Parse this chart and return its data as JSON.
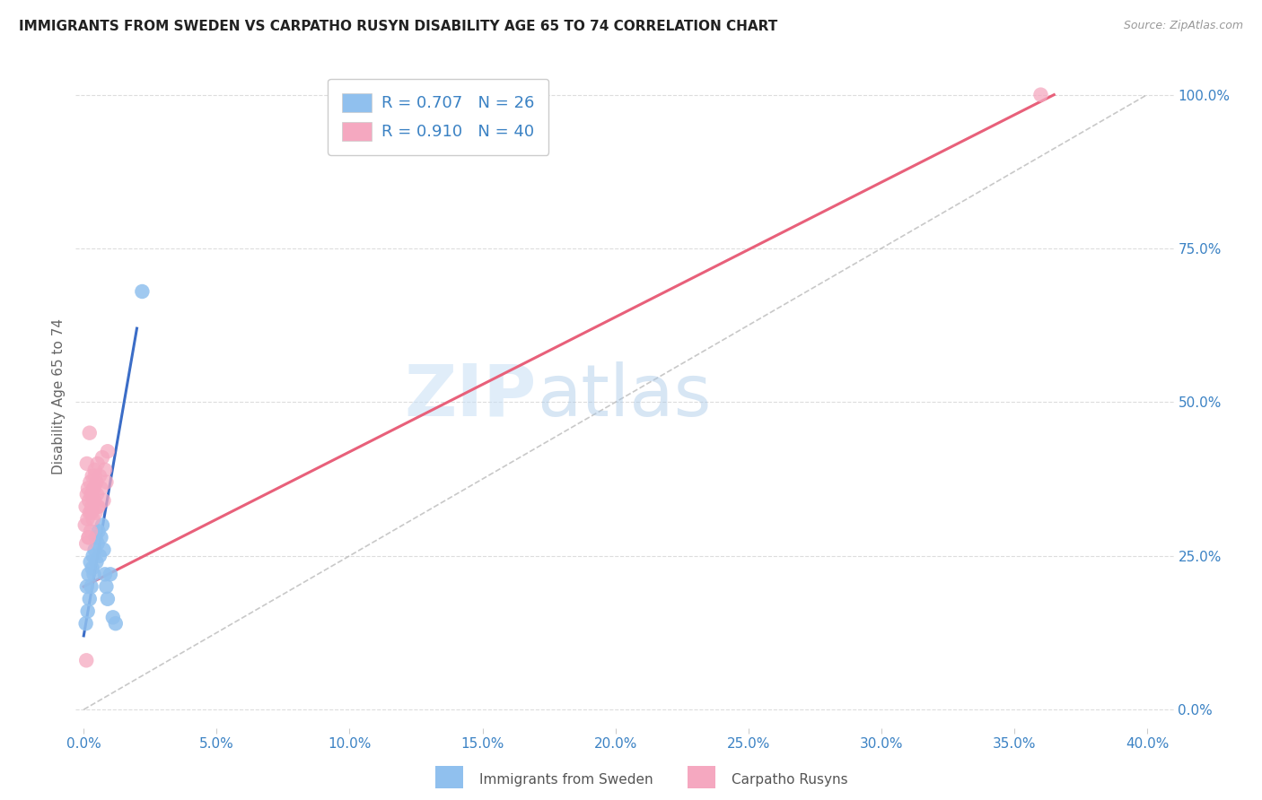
{
  "title": "IMMIGRANTS FROM SWEDEN VS CARPATHO RUSYN DISABILITY AGE 65 TO 74 CORRELATION CHART",
  "source": "Source: ZipAtlas.com",
  "ylabel": "Disability Age 65 to 74",
  "xlabel_ticks": [
    0.0,
    5.0,
    10.0,
    15.0,
    20.0,
    25.0,
    30.0,
    35.0,
    40.0
  ],
  "ylabel_ticks": [
    0.0,
    25.0,
    50.0,
    75.0,
    100.0
  ],
  "xlim": [
    -0.3,
    41.0
  ],
  "ylim": [
    -3.0,
    105.0
  ],
  "legend_r1": "R = 0.707",
  "legend_n1": "N = 26",
  "legend_r2": "R = 0.910",
  "legend_n2": "N = 40",
  "legend_label1": "Immigrants from Sweden",
  "legend_label2": "Carpatho Rusyns",
  "color_sweden": "#90C0EE",
  "color_rusyn": "#F5A8C0",
  "color_sweden_line": "#3B6DC7",
  "color_rusyn_line": "#E8607A",
  "color_ref_line": "#BBBBBB",
  "color_title": "#222222",
  "color_axis_ticks": "#3B82C4",
  "watermark_text": "ZIPatlas",
  "sweden_points_x": [
    0.08,
    0.12,
    0.15,
    0.18,
    0.22,
    0.25,
    0.28,
    0.32,
    0.35,
    0.38,
    0.42,
    0.45,
    0.48,
    0.52,
    0.55,
    0.6,
    0.65,
    0.7,
    0.75,
    0.8,
    0.85,
    0.9,
    1.0,
    1.1,
    1.2,
    2.2
  ],
  "sweden_points_y": [
    14.0,
    20.0,
    16.0,
    22.0,
    18.0,
    24.0,
    20.0,
    23.0,
    25.0,
    22.0,
    26.0,
    28.0,
    24.0,
    27.0,
    29.0,
    25.0,
    28.0,
    30.0,
    26.0,
    22.0,
    20.0,
    18.0,
    22.0,
    15.0,
    14.0,
    68.0
  ],
  "rusyn_points_x": [
    0.05,
    0.08,
    0.1,
    0.12,
    0.14,
    0.16,
    0.18,
    0.2,
    0.22,
    0.24,
    0.26,
    0.28,
    0.3,
    0.32,
    0.35,
    0.38,
    0.4,
    0.42,
    0.45,
    0.48,
    0.5,
    0.52,
    0.55,
    0.6,
    0.65,
    0.7,
    0.75,
    0.8,
    0.85,
    0.9,
    0.12,
    0.22,
    0.32,
    0.42,
    0.52,
    0.18,
    0.28,
    0.38,
    36.0,
    0.1
  ],
  "rusyn_points_y": [
    30.0,
    33.0,
    27.0,
    35.0,
    31.0,
    36.0,
    28.0,
    34.0,
    32.0,
    37.0,
    29.0,
    35.0,
    33.0,
    38.0,
    31.0,
    36.0,
    34.0,
    39.0,
    32.0,
    37.0,
    35.0,
    40.0,
    33.0,
    38.0,
    36.0,
    41.0,
    34.0,
    39.0,
    37.0,
    42.0,
    40.0,
    45.0,
    35.0,
    38.0,
    33.0,
    28.0,
    32.0,
    36.0,
    100.0,
    8.0
  ],
  "sweden_line_x": [
    0.0,
    2.0
  ],
  "sweden_line_y": [
    12.0,
    62.0
  ],
  "rusyn_line_x": [
    0.0,
    36.5
  ],
  "rusyn_line_y": [
    20.0,
    100.0
  ],
  "ref_line_x": [
    0.0,
    40.0
  ],
  "ref_line_y": [
    0.0,
    100.0
  ],
  "background_color": "#FFFFFF",
  "grid_color": "#DDDDDD"
}
